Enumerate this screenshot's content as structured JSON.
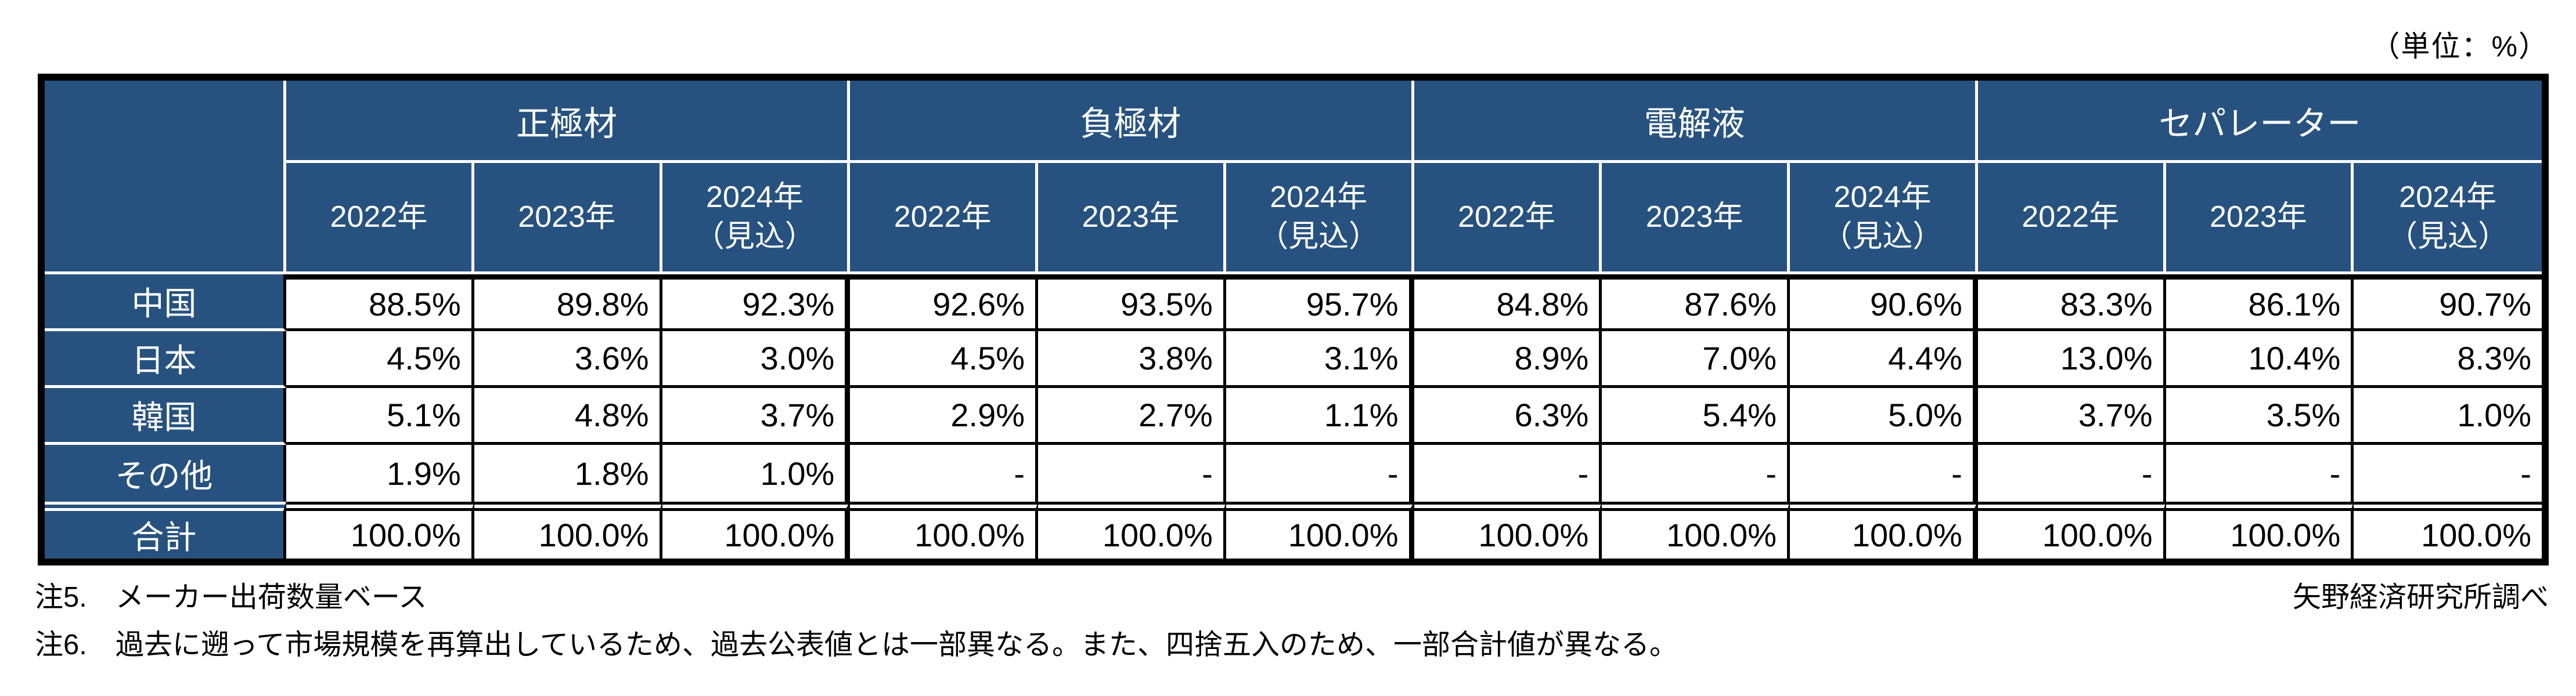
{
  "unit_label": "（単位：%）",
  "table": {
    "group_labels": [
      "正極材",
      "負極材",
      "電解液",
      "セパレーター"
    ],
    "year_labels": [
      "2022年",
      "2023年",
      "2024年"
    ],
    "forecast_label": "（見込）",
    "rows": [
      {
        "label": "中国",
        "cells": [
          "88.5%",
          "89.8%",
          "92.3%",
          "92.6%",
          "93.5%",
          "95.7%",
          "84.8%",
          "87.6%",
          "90.6%",
          "83.3%",
          "86.1%",
          "90.7%"
        ]
      },
      {
        "label": "日本",
        "cells": [
          "4.5%",
          "3.6%",
          "3.0%",
          "4.5%",
          "3.8%",
          "3.1%",
          "8.9%",
          "7.0%",
          "4.4%",
          "13.0%",
          "10.4%",
          "8.3%"
        ]
      },
      {
        "label": "韓国",
        "cells": [
          "5.1%",
          "4.8%",
          "3.7%",
          "2.9%",
          "2.7%",
          "1.1%",
          "6.3%",
          "5.4%",
          "5.0%",
          "3.7%",
          "3.5%",
          "1.0%"
        ]
      },
      {
        "label": "その他",
        "cells": [
          "1.9%",
          "1.8%",
          "1.0%",
          "-",
          "-",
          "-",
          "-",
          "-",
          "-",
          "-",
          "-",
          "-"
        ]
      },
      {
        "label": "合計",
        "cells": [
          "100.0%",
          "100.0%",
          "100.0%",
          "100.0%",
          "100.0%",
          "100.0%",
          "100.0%",
          "100.0%",
          "100.0%",
          "100.0%",
          "100.0%",
          "100.0%"
        ]
      }
    ]
  },
  "notes": {
    "note5": "注5.　メーカー出荷数量ベース",
    "source": "矢野経済研究所調べ",
    "note6": "注6.　過去に遡って市場規模を再算出しているため、過去公表値とは一部異なる。また、四捨五入のため、一部合計値が異なる。"
  },
  "colors": {
    "header_bg": "#27527F",
    "header_line": "#FFFFFF",
    "grid_line": "#000000"
  },
  "chart_data": {
    "type": "table",
    "unit": "%",
    "column_groups": [
      "正極材",
      "負極材",
      "電解液",
      "セパレーター"
    ],
    "year_columns": [
      "2022年",
      "2023年",
      "2024年（見込）"
    ],
    "row_labels": [
      "中国",
      "日本",
      "韓国",
      "その他",
      "合計"
    ],
    "values_by_row": [
      [
        88.5,
        89.8,
        92.3,
        92.6,
        93.5,
        95.7,
        84.8,
        87.6,
        90.6,
        83.3,
        86.1,
        90.7
      ],
      [
        4.5,
        3.6,
        3.0,
        4.5,
        3.8,
        3.1,
        8.9,
        7.0,
        4.4,
        13.0,
        10.4,
        8.3
      ],
      [
        5.1,
        4.8,
        3.7,
        2.9,
        2.7,
        1.1,
        6.3,
        5.4,
        5.0,
        3.7,
        3.5,
        1.0
      ],
      [
        1.9,
        1.8,
        1.0,
        null,
        null,
        null,
        null,
        null,
        null,
        null,
        null,
        null
      ],
      [
        100.0,
        100.0,
        100.0,
        100.0,
        100.0,
        100.0,
        100.0,
        100.0,
        100.0,
        100.0,
        100.0,
        100.0
      ]
    ]
  }
}
